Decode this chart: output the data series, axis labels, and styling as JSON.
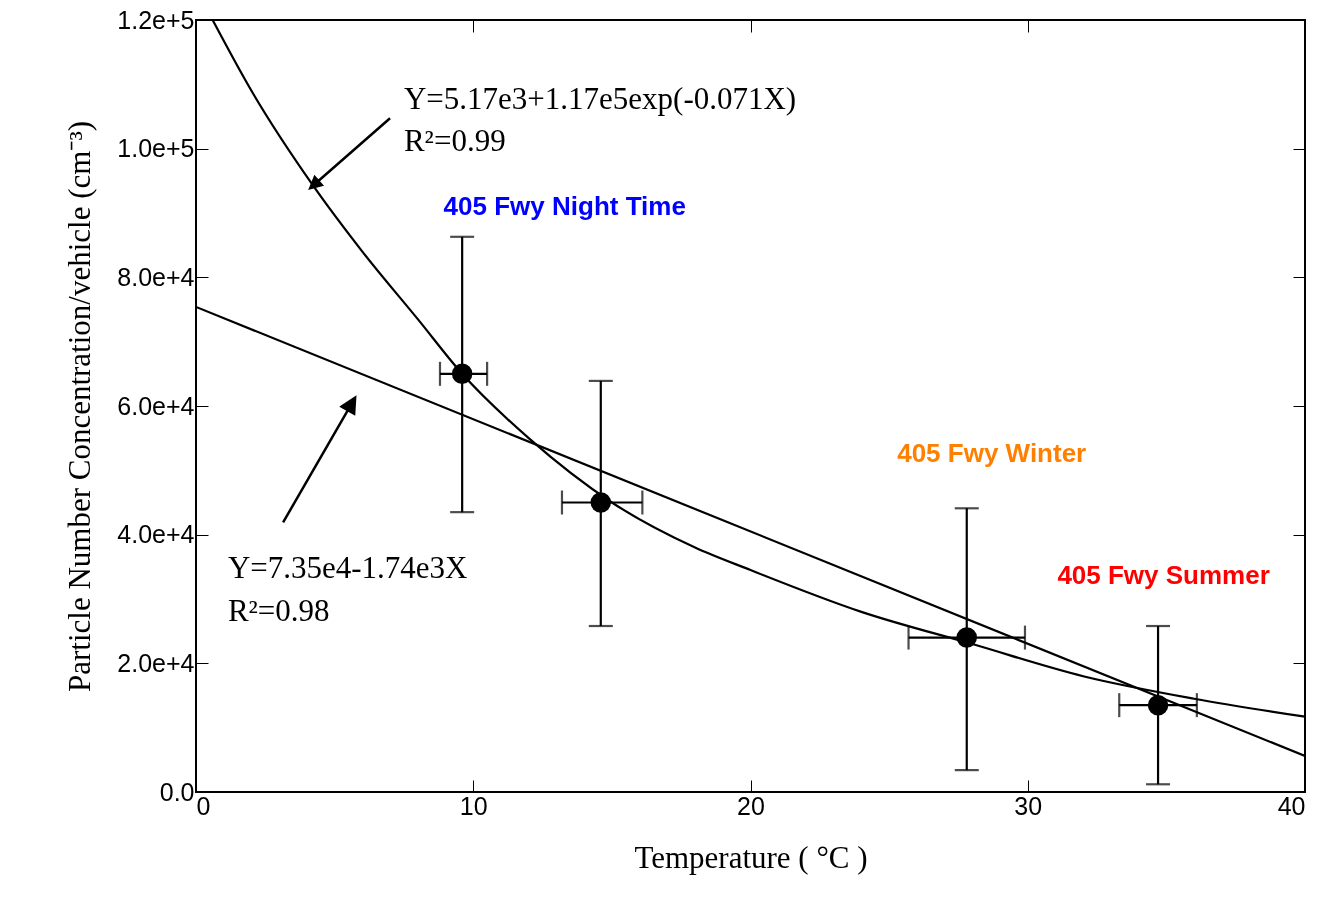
{
  "chart_data": {
    "type": "scatter",
    "xlabel": "Temperature ( °C )",
    "ylabel": "Particle Number Concentration/vehicle (cm⁻³)",
    "xlim": [
      0,
      40
    ],
    "xticks": [
      0,
      10,
      20,
      30,
      40
    ],
    "ylim": [
      0,
      120000
    ],
    "yticks": [
      {
        "value": 0,
        "label": "0.0"
      },
      {
        "value": 20000,
        "label": "2.0e+4"
      },
      {
        "value": 40000,
        "label": "4.0e+4"
      },
      {
        "value": 60000,
        "label": "6.0e+4"
      },
      {
        "value": 80000,
        "label": "8.0e+4"
      },
      {
        "value": 100000,
        "label": "1.0e+5"
      },
      {
        "value": 120000,
        "label": "1.2e+5"
      }
    ],
    "line_style": "solid",
    "series": [
      {
        "marker": "circle",
        "color": "#000000",
        "x": [
          9.6,
          14.6,
          27.8,
          34.7
        ],
        "values": [
          65000,
          45000,
          24000,
          13500
        ],
        "errors": [
          [
            43500,
            86300
          ],
          [
            25800,
            63900
          ],
          [
            3400,
            44100
          ],
          [
            1200,
            25800
          ]
        ],
        "xerrors": [
          [
            8.8,
            10.5
          ],
          [
            13.2,
            16.1
          ],
          [
            25.7,
            29.9
          ],
          [
            33.3,
            36.1
          ]
        ]
      },
      {
        "type": "line",
        "color": "#000000",
        "x": [
          0.6,
          2,
          4.2,
          6,
          8,
          9.6,
          12,
          15,
          18,
          20,
          24,
          28,
          32,
          36,
          40
        ],
        "values": [
          120000,
          109000,
          94400,
          84000,
          73500,
          65000,
          55000,
          45000,
          38000,
          34500,
          28000,
          23000,
          18000,
          14500,
          11700
        ]
      },
      {
        "type": "line",
        "color": "#000000",
        "x": [
          0,
          40
        ],
        "values": [
          75400,
          5600
        ]
      }
    ],
    "annotations": [
      "Y=5.17e3+1.17e5exp(-0.071X)",
      "R²=0.99",
      "405 Fwy Night Time",
      "405 Fwy Winter",
      "405 Fwy Summer",
      "Y=7.35e4-1.74e3X",
      "R²=0.98"
    ]
  }
}
